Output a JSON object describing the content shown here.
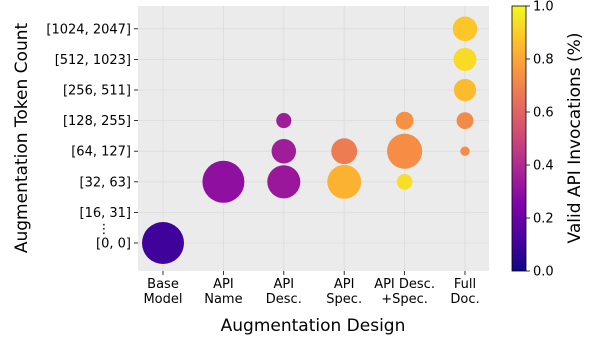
{
  "chart_data": {
    "type": "scatter",
    "xlabel": "Augmentation Design",
    "ylabel": "Augmentation Token Count",
    "x_categories": [
      "Base\nModel",
      "API\nName",
      "API\nDesc.",
      "API\nSpec.",
      "API Desc.\n+Spec.",
      "Full\nDoc."
    ],
    "y_categories": [
      "[0, 0]",
      "[16, 31]",
      "[32, 63]",
      "[64, 127]",
      "[128, 255]",
      "[256, 511]",
      "[512, 1023]",
      "[1024, 2047]"
    ],
    "y_break_marker": "⋮",
    "colorbar": {
      "label": "Valid API Invocations (%)",
      "range": [
        0.0,
        1.0
      ],
      "ticks": [
        "0.0",
        "0.2",
        "0.4",
        "0.6",
        "0.8",
        "1.0"
      ],
      "colormap": "plasma"
    },
    "grid": true,
    "points": [
      {
        "x": "Base\nModel",
        "y": "[0, 0]",
        "size": 1.0,
        "value": 0.1
      },
      {
        "x": "API\nName",
        "y": "[32, 63]",
        "size": 1.0,
        "value": 0.3
      },
      {
        "x": "API\nDesc.",
        "y": "[32, 63]",
        "size": 0.62,
        "value": 0.33
      },
      {
        "x": "API\nDesc.",
        "y": "[64, 127]",
        "size": 0.34,
        "value": 0.35
      },
      {
        "x": "API\nDesc.",
        "y": "[128, 255]",
        "size": 0.13,
        "value": 0.35
      },
      {
        "x": "API\nSpec.",
        "y": "[32, 63]",
        "size": 0.65,
        "value": 0.83
      },
      {
        "x": "API\nSpec.",
        "y": "[64, 127]",
        "size": 0.38,
        "value": 0.68
      },
      {
        "x": "API Desc.\n+Spec.",
        "y": "[32, 63]",
        "size": 0.14,
        "value": 0.94
      },
      {
        "x": "API Desc.\n+Spec.",
        "y": "[64, 127]",
        "size": 0.7,
        "value": 0.73
      },
      {
        "x": "API Desc.\n+Spec.",
        "y": "[128, 255]",
        "size": 0.18,
        "value": 0.74
      },
      {
        "x": "Full\nDoc.",
        "y": "[64, 127]",
        "size": 0.05,
        "value": 0.73
      },
      {
        "x": "Full\nDoc.",
        "y": "[128, 255]",
        "size": 0.16,
        "value": 0.72
      },
      {
        "x": "Full\nDoc.",
        "y": "[256, 511]",
        "size": 0.28,
        "value": 0.85
      },
      {
        "x": "Full\nDoc.",
        "y": "[512, 1023]",
        "size": 0.3,
        "value": 0.93
      },
      {
        "x": "Full\nDoc.",
        "y": "[1024, 2047]",
        "size": 0.34,
        "value": 0.88
      }
    ]
  }
}
